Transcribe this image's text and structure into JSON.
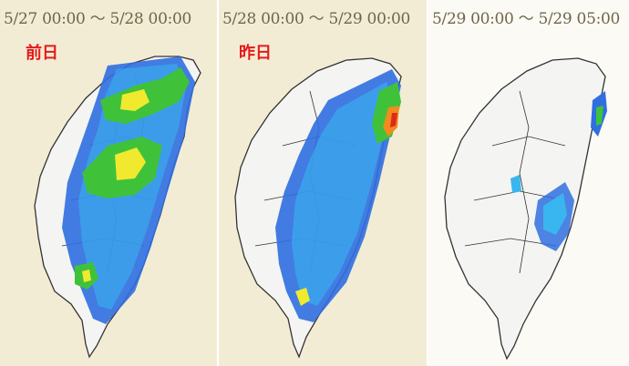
{
  "panels": [
    {
      "range": "5/27 00:00 ～ 5/28 00:00",
      "day_label": "前日"
    },
    {
      "range": "5/28 00:00 ～ 5/29 00:00",
      "day_label": "昨日"
    },
    {
      "range": "5/29 00:00 ～ 5/29 05:00"
    }
  ],
  "colors": {
    "land": "#f4f4f2",
    "light_blue": "#39b6f0",
    "blue": "#2f6fe0",
    "green": "#3fc23a",
    "dark_green": "#1f8c2a",
    "yellow": "#f0e92e",
    "orange": "#f28a1e",
    "red": "#e0281c"
  }
}
